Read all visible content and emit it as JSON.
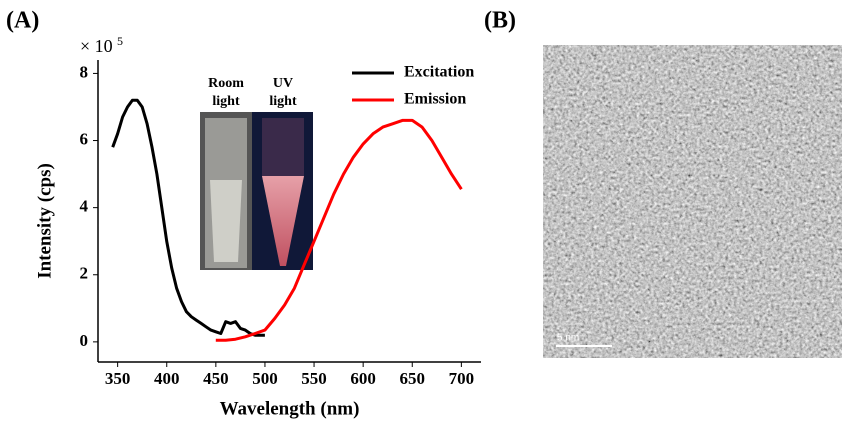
{
  "panel_a_label": "(A)",
  "panel_b_label": "(B)",
  "chart_data": {
    "type": "line",
    "x_label": "Wavelength (nm)",
    "y_label": "Intensity (cps)",
    "y_multiplier": "× 10",
    "y_multiplier_exp": "5",
    "xlim": [
      330,
      720
    ],
    "xticks": [
      350,
      400,
      450,
      500,
      550,
      600,
      650,
      700
    ],
    "ylim": [
      -0.6,
      8.4
    ],
    "yticks": [
      0,
      2,
      4,
      6,
      8
    ],
    "legend": "top-right",
    "series": [
      {
        "name": "Excitation",
        "color": "#000000",
        "x": [
          345,
          350,
          355,
          360,
          365,
          370,
          375,
          380,
          385,
          390,
          395,
          400,
          405,
          410,
          415,
          420,
          425,
          430,
          435,
          440,
          445,
          450,
          455,
          460,
          465,
          470,
          475,
          480,
          485,
          490,
          495,
          500
        ],
        "values": [
          5.8,
          6.2,
          6.7,
          7.0,
          7.2,
          7.2,
          7.0,
          6.5,
          5.8,
          5.0,
          4.0,
          3.0,
          2.2,
          1.6,
          1.2,
          0.9,
          0.75,
          0.65,
          0.55,
          0.45,
          0.35,
          0.3,
          0.25,
          0.6,
          0.55,
          0.6,
          0.4,
          0.35,
          0.25,
          0.2,
          0.2,
          0.2
        ]
      },
      {
        "name": "Emission",
        "color": "#ff0000",
        "x": [
          450,
          460,
          470,
          480,
          490,
          500,
          510,
          520,
          530,
          540,
          550,
          560,
          570,
          580,
          590,
          600,
          610,
          620,
          630,
          640,
          650,
          660,
          670,
          680,
          690,
          700
        ],
        "values": [
          0.05,
          0.05,
          0.08,
          0.15,
          0.25,
          0.35,
          0.7,
          1.1,
          1.6,
          2.3,
          3.0,
          3.7,
          4.4,
          5.0,
          5.5,
          5.9,
          6.2,
          6.4,
          6.5,
          6.6,
          6.6,
          6.4,
          6.0,
          5.5,
          5.0,
          4.55
        ]
      }
    ]
  },
  "inset": {
    "left_label": "Room\nlight",
    "right_label": "UV\nlight"
  },
  "tem": {
    "scale_bar": "5 nm"
  }
}
